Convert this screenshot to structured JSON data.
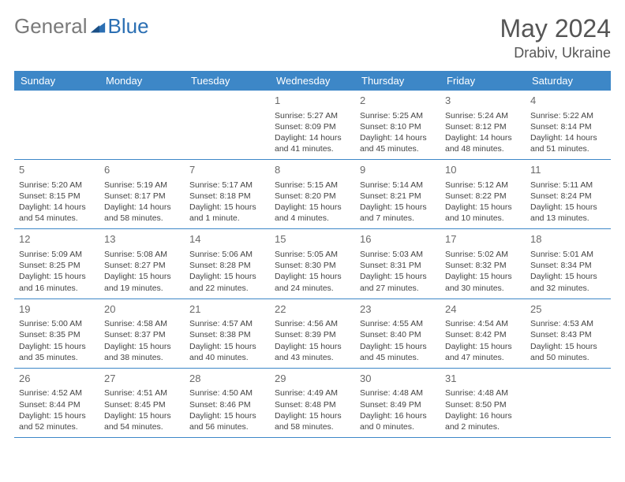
{
  "logo": {
    "general": "General",
    "blue": "Blue"
  },
  "title": {
    "month": "May 2024",
    "location": "Drabiv, Ukraine"
  },
  "colors": {
    "header_bg": "#3d87c7",
    "header_text": "#ffffff",
    "border": "#3d87c7",
    "daynum": "#6a6a6a",
    "body_text": "#444444",
    "logo_gray": "#7a7a7a",
    "logo_blue": "#2b6fb3"
  },
  "day_labels": [
    "Sunday",
    "Monday",
    "Tuesday",
    "Wednesday",
    "Thursday",
    "Friday",
    "Saturday"
  ],
  "weeks": [
    [
      {
        "n": "",
        "sr": "",
        "ss": "",
        "dl": ""
      },
      {
        "n": "",
        "sr": "",
        "ss": "",
        "dl": ""
      },
      {
        "n": "",
        "sr": "",
        "ss": "",
        "dl": ""
      },
      {
        "n": "1",
        "sr": "Sunrise: 5:27 AM",
        "ss": "Sunset: 8:09 PM",
        "dl": "Daylight: 14 hours and 41 minutes."
      },
      {
        "n": "2",
        "sr": "Sunrise: 5:25 AM",
        "ss": "Sunset: 8:10 PM",
        "dl": "Daylight: 14 hours and 45 minutes."
      },
      {
        "n": "3",
        "sr": "Sunrise: 5:24 AM",
        "ss": "Sunset: 8:12 PM",
        "dl": "Daylight: 14 hours and 48 minutes."
      },
      {
        "n": "4",
        "sr": "Sunrise: 5:22 AM",
        "ss": "Sunset: 8:14 PM",
        "dl": "Daylight: 14 hours and 51 minutes."
      }
    ],
    [
      {
        "n": "5",
        "sr": "Sunrise: 5:20 AM",
        "ss": "Sunset: 8:15 PM",
        "dl": "Daylight: 14 hours and 54 minutes."
      },
      {
        "n": "6",
        "sr": "Sunrise: 5:19 AM",
        "ss": "Sunset: 8:17 PM",
        "dl": "Daylight: 14 hours and 58 minutes."
      },
      {
        "n": "7",
        "sr": "Sunrise: 5:17 AM",
        "ss": "Sunset: 8:18 PM",
        "dl": "Daylight: 15 hours and 1 minute."
      },
      {
        "n": "8",
        "sr": "Sunrise: 5:15 AM",
        "ss": "Sunset: 8:20 PM",
        "dl": "Daylight: 15 hours and 4 minutes."
      },
      {
        "n": "9",
        "sr": "Sunrise: 5:14 AM",
        "ss": "Sunset: 8:21 PM",
        "dl": "Daylight: 15 hours and 7 minutes."
      },
      {
        "n": "10",
        "sr": "Sunrise: 5:12 AM",
        "ss": "Sunset: 8:22 PM",
        "dl": "Daylight: 15 hours and 10 minutes."
      },
      {
        "n": "11",
        "sr": "Sunrise: 5:11 AM",
        "ss": "Sunset: 8:24 PM",
        "dl": "Daylight: 15 hours and 13 minutes."
      }
    ],
    [
      {
        "n": "12",
        "sr": "Sunrise: 5:09 AM",
        "ss": "Sunset: 8:25 PM",
        "dl": "Daylight: 15 hours and 16 minutes."
      },
      {
        "n": "13",
        "sr": "Sunrise: 5:08 AM",
        "ss": "Sunset: 8:27 PM",
        "dl": "Daylight: 15 hours and 19 minutes."
      },
      {
        "n": "14",
        "sr": "Sunrise: 5:06 AM",
        "ss": "Sunset: 8:28 PM",
        "dl": "Daylight: 15 hours and 22 minutes."
      },
      {
        "n": "15",
        "sr": "Sunrise: 5:05 AM",
        "ss": "Sunset: 8:30 PM",
        "dl": "Daylight: 15 hours and 24 minutes."
      },
      {
        "n": "16",
        "sr": "Sunrise: 5:03 AM",
        "ss": "Sunset: 8:31 PM",
        "dl": "Daylight: 15 hours and 27 minutes."
      },
      {
        "n": "17",
        "sr": "Sunrise: 5:02 AM",
        "ss": "Sunset: 8:32 PM",
        "dl": "Daylight: 15 hours and 30 minutes."
      },
      {
        "n": "18",
        "sr": "Sunrise: 5:01 AM",
        "ss": "Sunset: 8:34 PM",
        "dl": "Daylight: 15 hours and 32 minutes."
      }
    ],
    [
      {
        "n": "19",
        "sr": "Sunrise: 5:00 AM",
        "ss": "Sunset: 8:35 PM",
        "dl": "Daylight: 15 hours and 35 minutes."
      },
      {
        "n": "20",
        "sr": "Sunrise: 4:58 AM",
        "ss": "Sunset: 8:37 PM",
        "dl": "Daylight: 15 hours and 38 minutes."
      },
      {
        "n": "21",
        "sr": "Sunrise: 4:57 AM",
        "ss": "Sunset: 8:38 PM",
        "dl": "Daylight: 15 hours and 40 minutes."
      },
      {
        "n": "22",
        "sr": "Sunrise: 4:56 AM",
        "ss": "Sunset: 8:39 PM",
        "dl": "Daylight: 15 hours and 43 minutes."
      },
      {
        "n": "23",
        "sr": "Sunrise: 4:55 AM",
        "ss": "Sunset: 8:40 PM",
        "dl": "Daylight: 15 hours and 45 minutes."
      },
      {
        "n": "24",
        "sr": "Sunrise: 4:54 AM",
        "ss": "Sunset: 8:42 PM",
        "dl": "Daylight: 15 hours and 47 minutes."
      },
      {
        "n": "25",
        "sr": "Sunrise: 4:53 AM",
        "ss": "Sunset: 8:43 PM",
        "dl": "Daylight: 15 hours and 50 minutes."
      }
    ],
    [
      {
        "n": "26",
        "sr": "Sunrise: 4:52 AM",
        "ss": "Sunset: 8:44 PM",
        "dl": "Daylight: 15 hours and 52 minutes."
      },
      {
        "n": "27",
        "sr": "Sunrise: 4:51 AM",
        "ss": "Sunset: 8:45 PM",
        "dl": "Daylight: 15 hours and 54 minutes."
      },
      {
        "n": "28",
        "sr": "Sunrise: 4:50 AM",
        "ss": "Sunset: 8:46 PM",
        "dl": "Daylight: 15 hours and 56 minutes."
      },
      {
        "n": "29",
        "sr": "Sunrise: 4:49 AM",
        "ss": "Sunset: 8:48 PM",
        "dl": "Daylight: 15 hours and 58 minutes."
      },
      {
        "n": "30",
        "sr": "Sunrise: 4:48 AM",
        "ss": "Sunset: 8:49 PM",
        "dl": "Daylight: 16 hours and 0 minutes."
      },
      {
        "n": "31",
        "sr": "Sunrise: 4:48 AM",
        "ss": "Sunset: 8:50 PM",
        "dl": "Daylight: 16 hours and 2 minutes."
      },
      {
        "n": "",
        "sr": "",
        "ss": "",
        "dl": ""
      }
    ]
  ]
}
